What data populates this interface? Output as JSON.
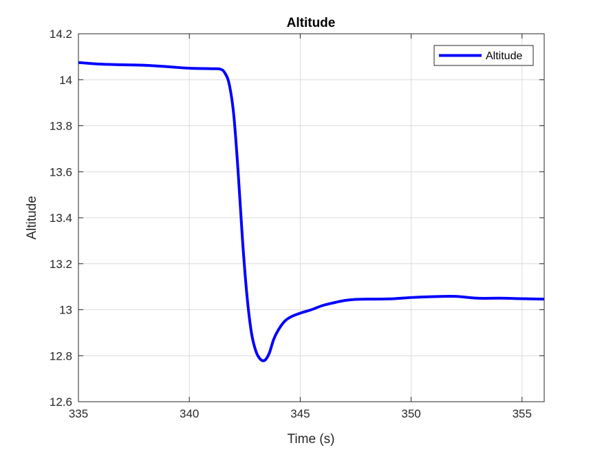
{
  "chart_data": {
    "type": "line",
    "title": "Altitude",
    "xlabel": "Time (s)",
    "ylabel": "Altitude",
    "xlim": [
      335,
      356
    ],
    "ylim": [
      12.6,
      14.2
    ],
    "xticks": [
      335,
      340,
      345,
      350,
      355
    ],
    "xtick_labels": [
      "335",
      "340",
      "345",
      "350",
      "355"
    ],
    "yticks": [
      12.6,
      12.8,
      13.0,
      13.2,
      13.4,
      13.6,
      13.8,
      14.0,
      14.2
    ],
    "ytick_labels": [
      "12.6",
      "12.8",
      "13",
      "13.2",
      "13.4",
      "13.6",
      "13.8",
      "14",
      "14.2"
    ],
    "grid": true,
    "legend_position": "top-right",
    "series": [
      {
        "name": "Altitude",
        "color": "#0000ff",
        "x": [
          335,
          336,
          337,
          338,
          339,
          340,
          341,
          341.4,
          341.6,
          341.8,
          342.0,
          342.2,
          342.4,
          342.6,
          342.8,
          343.0,
          343.2,
          343.4,
          343.6,
          343.8,
          344.0,
          344.3,
          344.6,
          345.0,
          345.5,
          346,
          346.5,
          347,
          347.5,
          348,
          349,
          350,
          351,
          352,
          353,
          354,
          355,
          356
        ],
        "y": [
          14.075,
          14.068,
          14.065,
          14.063,
          14.057,
          14.05,
          14.048,
          14.046,
          14.03,
          13.98,
          13.85,
          13.6,
          13.3,
          13.06,
          12.9,
          12.82,
          12.785,
          12.78,
          12.81,
          12.87,
          12.91,
          12.95,
          12.97,
          12.985,
          13.0,
          13.018,
          13.03,
          13.04,
          13.045,
          13.046,
          13.047,
          13.053,
          13.057,
          13.058,
          13.05,
          13.05,
          13.048,
          13.046
        ]
      }
    ]
  }
}
